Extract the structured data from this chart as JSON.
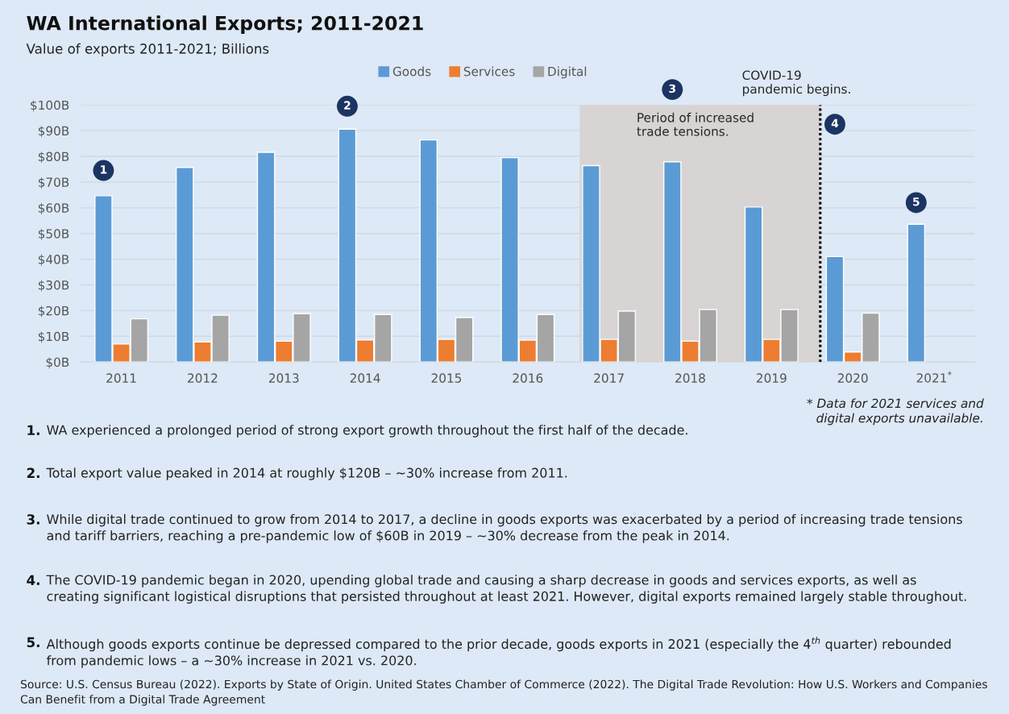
{
  "chart_data": {
    "type": "bar",
    "title": "WA International Exports; 2011-2021",
    "subtitle": "Value of exports 2011-2021; Billions",
    "categories": [
      "2011",
      "2012",
      "2013",
      "2014",
      "2015",
      "2016",
      "2017",
      "2018",
      "2019",
      "2020",
      "2021$^{*}$"
    ],
    "series": [
      {
        "name": "Goods",
        "color": "#5b9bd5",
        "values": [
          64.7,
          75.7,
          81.6,
          90.6,
          86.4,
          79.5,
          76.4,
          77.9,
          60.3,
          41.0,
          53.6
        ]
      },
      {
        "name": "Services",
        "color": "#ed7d31",
        "values": [
          7.0,
          7.8,
          8.1,
          8.6,
          8.8,
          8.5,
          8.8,
          8.1,
          8.8,
          3.9,
          null
        ]
      },
      {
        "name": "Digital",
        "color": "#a5a5a5",
        "values": [
          16.8,
          18.2,
          18.8,
          18.5,
          17.3,
          18.5,
          19.8,
          20.4,
          20.4,
          19.0,
          null
        ]
      }
    ],
    "ylim": [
      0,
      100
    ],
    "yticks": [
      {
        "value": 0,
        "label": "$0B"
      },
      {
        "value": 10,
        "label": "$10B"
      },
      {
        "value": 20,
        "label": "$20B"
      },
      {
        "value": 30,
        "label": "$30B"
      },
      {
        "value": 40,
        "label": "$40B"
      },
      {
        "value": 50,
        "label": "$50B"
      },
      {
        "value": 60,
        "label": "$60B"
      },
      {
        "value": 70,
        "label": "$70B"
      },
      {
        "value": 80,
        "label": "$80B"
      },
      {
        "value": 90,
        "label": "$90B"
      },
      {
        "value": 100,
        "label": "$100B"
      }
    ],
    "grid": "y",
    "legend": "top",
    "bands": [
      {
        "axis": "x",
        "from": "2017",
        "to": "2019",
        "label": "Period of increased\ntrade tensions.",
        "color": "#d8d4d4"
      }
    ],
    "ref_lines": [
      {
        "axis": "x",
        "value": "2020",
        "label": "COVID-19\npandemic begins.",
        "color": "#000000",
        "line_style": "dotted"
      }
    ],
    "annotations": [
      "1",
      "2",
      "3",
      "4",
      "5",
      "* Data for 2021 services and\ndigital exports unavailable.",
      "1. WA experienced a prolonged period of strong export growth throughout the first half of the decade.",
      "2. Total export value peaked in 2014 at roughly $120B – ~30% increase from 2011.",
      "3. While digital trade continued to grow from 2014 to 2017, a decline in goods exports was exacerbated by a period of increasing trade tensions\nand tariff barriers, reaching a pre-pandemic low of $60B in 2019 – ~30% decrease from the peak in 2014.",
      "4. The COVID-19 pandemic began in 2020, upending global trade and causing a sharp decrease in goods and services exports, as well as\ncreating significant logistical disruptions that persisted throughout at least 2021. However, digital exports remained largely stable throughout.",
      "5. Although goods exports continue be depressed compared to the prior decade, goods exports in 2021 (especially the 4$^{th}$ quarter) rebounded\nfrom pandemic lows – a ~30% increase in 2021 vs. 2020.",
      "Source: U.S. Census Bureau (2022). Exports by State of Origin. United States Chamber of Commerce (2022). The Digital Trade Revolution: How U.S. Workers and Companies Can Benefit from a Digital Trade Agreement"
    ]
  }
}
